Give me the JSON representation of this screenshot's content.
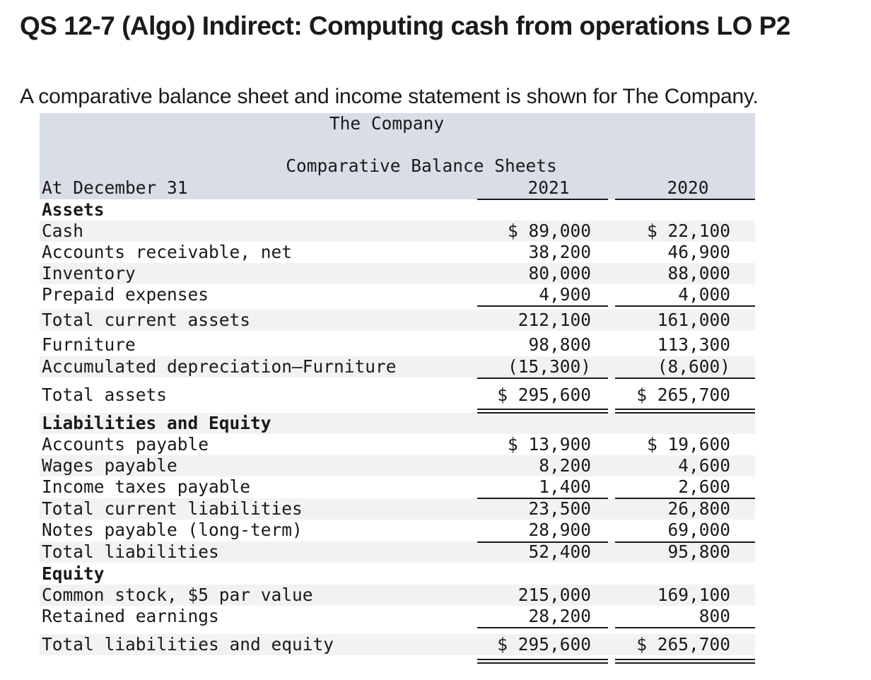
{
  "title": "QS 12-7 (Algo) Indirect: Computing cash from operations LO P2",
  "intro": "A comparative balance sheet and income statement is shown for The Company.",
  "sheet": {
    "company": "The Company",
    "subtitle": "Comparative Balance Sheets",
    "at_label": "At December 31",
    "year1": "2021",
    "year2": "2020",
    "rows": [
      {
        "label": "Assets",
        "bold": true,
        "v1": "",
        "v2": ""
      },
      {
        "label": "Cash",
        "v1": "$ 89,000",
        "v2": "$ 22,100"
      },
      {
        "label": "Accounts receivable, net",
        "v1": "38,200",
        "v2": "46,900"
      },
      {
        "label": "Inventory",
        "v1": "80,000",
        "v2": "88,000"
      },
      {
        "label": "Prepaid expenses",
        "v1": "4,900",
        "v2": "4,000"
      },
      {
        "label": "Total current assets",
        "v1": "212,100",
        "v2": "161,000"
      },
      {
        "label": "Furniture",
        "v1": "98,800",
        "v2": "113,300"
      },
      {
        "label": "Accumulated depreciation—Furniture",
        "v1": "(15,300)",
        "v2": "(8,600)"
      },
      {
        "label": "Total assets",
        "v1": "$ 295,600",
        "v2": "$ 265,700"
      },
      {
        "label": "Liabilities and Equity",
        "bold": true,
        "v1": "",
        "v2": ""
      },
      {
        "label": "Accounts payable",
        "v1": "$ 13,900",
        "v2": "$ 19,600"
      },
      {
        "label": "Wages payable",
        "v1": "8,200",
        "v2": "4,600"
      },
      {
        "label": "Income taxes payable",
        "v1": "1,400",
        "v2": "2,600"
      },
      {
        "label": "Total current liabilities",
        "v1": "23,500",
        "v2": "26,800"
      },
      {
        "label": "Notes payable (long-term)",
        "v1": "28,900",
        "v2": "69,000"
      },
      {
        "label": "Total liabilities",
        "v1": "52,400",
        "v2": "95,800"
      },
      {
        "label": "Equity",
        "bold": true,
        "v1": "",
        "v2": ""
      },
      {
        "label": "Common stock, $5 par value",
        "v1": "215,000",
        "v2": "169,100"
      },
      {
        "label": "Retained earnings",
        "v1": "28,200",
        "v2": "800"
      },
      {
        "label": "Total liabilities and equity",
        "v1": "$ 295,600",
        "v2": "$ 265,700"
      }
    ]
  }
}
